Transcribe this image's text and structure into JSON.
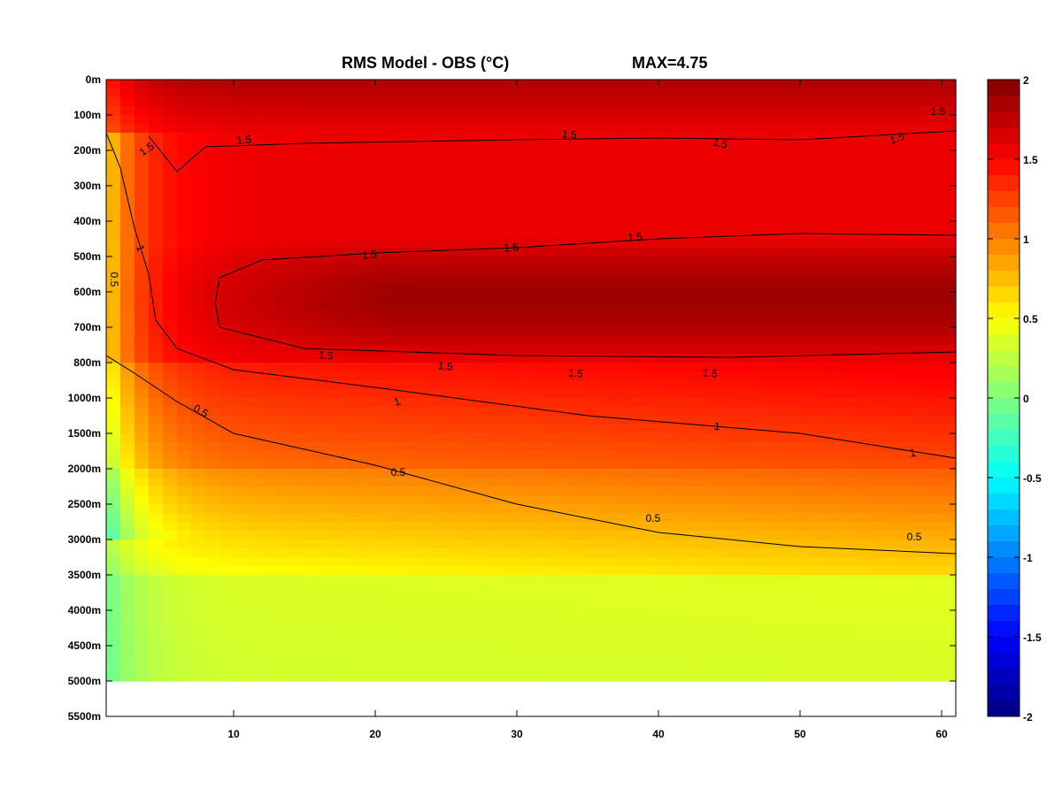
{
  "chart_data": {
    "type": "heatmap",
    "title": "RMS Model - OBS (°C)",
    "max_label": "MAX=4.75",
    "x_ticks": [
      10,
      20,
      30,
      40,
      50,
      60
    ],
    "xlim": [
      1,
      61
    ],
    "y_tick_labels": [
      "0m",
      "100m",
      "200m",
      "300m",
      "400m",
      "500m",
      "600m",
      "700m",
      "800m",
      "1000m",
      "1500m",
      "2000m",
      "2500m",
      "3000m",
      "3500m",
      "4000m",
      "4500m",
      "5000m",
      "5500m"
    ],
    "data_bottom_depth_label": "5000m",
    "colorbar": {
      "range": [
        -2,
        2
      ],
      "ticks": [
        "2",
        "1.5",
        "1",
        "0.5",
        "0",
        "-0.5",
        "-1",
        "-1.5",
        "-2"
      ],
      "colormap": "jet"
    },
    "contour_levels": [
      0.5,
      1,
      1.5
    ],
    "contours": [
      {
        "level": "1.5",
        "label": "1.5",
        "points": [
          [
            4,
            1.6
          ],
          [
            6,
            2.6
          ],
          [
            8,
            1.9
          ],
          [
            15,
            1.8
          ],
          [
            30,
            1.7
          ],
          [
            40,
            1.65
          ],
          [
            50,
            1.7
          ],
          [
            61,
            1.45
          ]
        ]
      },
      {
        "level": "1.5",
        "label": "1.5",
        "points": [
          [
            61,
            4.4
          ],
          [
            50,
            4.35
          ],
          [
            40,
            4.5
          ],
          [
            30,
            4.75
          ],
          [
            20,
            4.9
          ],
          [
            12,
            5.1
          ],
          [
            9,
            5.6
          ],
          [
            8.7,
            6.3
          ],
          [
            9,
            7.0
          ],
          [
            15,
            7.6
          ],
          [
            30,
            7.8
          ],
          [
            45,
            7.85
          ],
          [
            61,
            7.7
          ]
        ]
      },
      {
        "level": "1",
        "label": "1",
        "points": [
          [
            1,
            1.5
          ],
          [
            2,
            2.5
          ],
          [
            3,
            4.2
          ],
          [
            4,
            5.5
          ],
          [
            4.5,
            6.8
          ],
          [
            6,
            7.6
          ],
          [
            10,
            8.2
          ],
          [
            20,
            8.7
          ],
          [
            35,
            9.5
          ],
          [
            50,
            10.0
          ],
          [
            61,
            10.7
          ]
        ]
      },
      {
        "level": "0.5",
        "label": "0.5",
        "points": [
          [
            1,
            7.8
          ],
          [
            3,
            8.3
          ],
          [
            6,
            9.1
          ],
          [
            10,
            10.0
          ],
          [
            20,
            10.9
          ],
          [
            30,
            12.0
          ],
          [
            40,
            12.8
          ],
          [
            50,
            13.2
          ],
          [
            61,
            13.4
          ]
        ]
      }
    ],
    "contour_label_text": [
      "1.5",
      "1.5",
      "1.5",
      "1.5",
      "1.5",
      "1.5",
      "1.5",
      "1.5",
      "1.5",
      "1.5",
      "1.5",
      "1.5",
      "1.5",
      "1",
      "1",
      "1",
      "1",
      "0.5",
      "0.5",
      "0.5",
      "0.5",
      "0.5"
    ]
  }
}
